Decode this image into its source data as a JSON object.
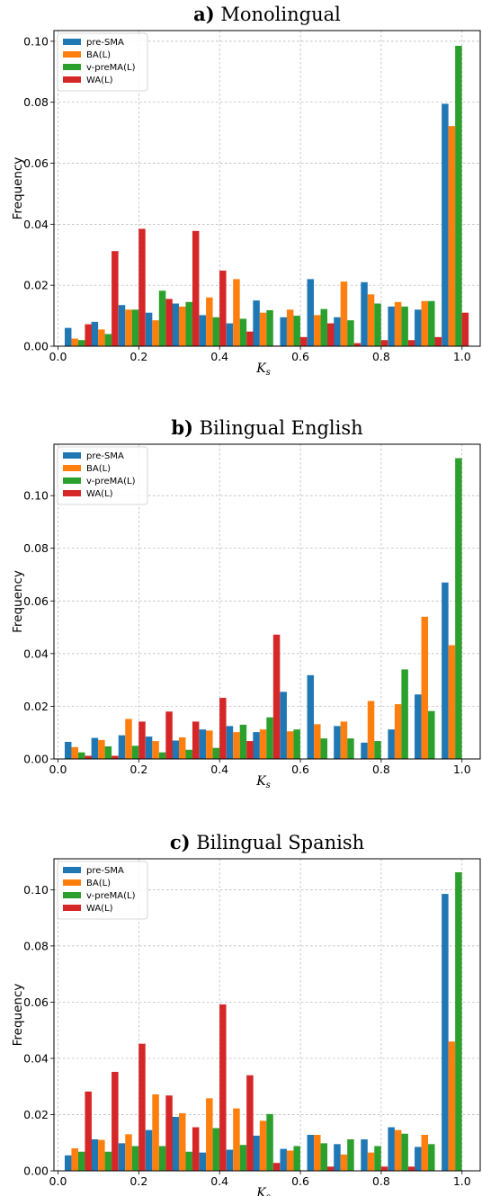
{
  "chart_data": [
    {
      "type": "bar",
      "panel_letter": "a)",
      "title": "Monolingual",
      "xlabel": "K",
      "xlabel_sub": "s",
      "ylabel": "Frequency",
      "xlim": [
        -0.01,
        1.045
      ],
      "ylim": [
        0,
        0.1035
      ],
      "xticks": [
        "0.0",
        "0.2",
        "0.4",
        "0.6",
        "0.8",
        "1.0"
      ],
      "xtick_values": [
        0.0,
        0.2,
        0.4,
        0.6,
        0.8,
        1.0
      ],
      "yticks": [
        "0.00",
        "0.02",
        "0.04",
        "0.06",
        "0.08",
        "0.10"
      ],
      "ytick_values": [
        0,
        0.02,
        0.04,
        0.06,
        0.08,
        0.1
      ],
      "grid": true,
      "legend_position": "top-left",
      "bin_centers": [
        0.05,
        0.116,
        0.183,
        0.25,
        0.316,
        0.383,
        0.45,
        0.516,
        0.583,
        0.65,
        0.716,
        0.783,
        0.85,
        0.916,
        0.983
      ],
      "series": [
        {
          "name": "pre-SMA",
          "color": "#1f77b4",
          "values": [
            0.006,
            0.008,
            0.0135,
            0.011,
            0.014,
            0.0102,
            0.0075,
            0.015,
            0.0095,
            0.022,
            0.0095,
            0.021,
            0.013,
            0.012,
            0.0795
          ]
        },
        {
          "name": "BA(L)",
          "color": "#ff7f0e",
          "values": [
            0.0025,
            0.0055,
            0.012,
            0.0085,
            0.013,
            0.016,
            0.022,
            0.011,
            0.012,
            0.0102,
            0.0212,
            0.017,
            0.0145,
            0.0148,
            0.0722
          ]
        },
        {
          "name": "v-preMA(L)",
          "color": "#2ca02c",
          "values": [
            0.002,
            0.004,
            0.012,
            0.0182,
            0.0145,
            0.0095,
            0.009,
            0.0118,
            0.01,
            0.0122,
            0.0085,
            0.014,
            0.013,
            0.0148,
            0.0985
          ]
        },
        {
          "name": "WA(L)",
          "color": "#d62728",
          "values": [
            0.0072,
            0.0312,
            0.0385,
            0.0155,
            0.0378,
            0.0248,
            0.0048,
            0.0002,
            0.003,
            0.0075,
            0.001,
            0.002,
            0.002,
            0.003,
            0.011
          ]
        }
      ]
    },
    {
      "type": "bar",
      "panel_letter": "b)",
      "title": "Bilingual English",
      "xlabel": "K",
      "xlabel_sub": "s",
      "ylabel": "Frequency",
      "xlim": [
        -0.01,
        1.045
      ],
      "ylim": [
        0,
        0.1195
      ],
      "xticks": [
        "0.0",
        "0.2",
        "0.4",
        "0.6",
        "0.8",
        "1.0"
      ],
      "xtick_values": [
        0.0,
        0.2,
        0.4,
        0.6,
        0.8,
        1.0
      ],
      "yticks": [
        "0.00",
        "0.02",
        "0.04",
        "0.06",
        "0.08",
        "0.10"
      ],
      "ytick_values": [
        0,
        0.02,
        0.04,
        0.06,
        0.08,
        0.1
      ],
      "grid": true,
      "legend_position": "top-left",
      "bin_centers": [
        0.05,
        0.116,
        0.183,
        0.25,
        0.316,
        0.383,
        0.45,
        0.516,
        0.583,
        0.65,
        0.716,
        0.783,
        0.85,
        0.916,
        0.983
      ],
      "series": [
        {
          "name": "pre-SMA",
          "color": "#1f77b4",
          "values": [
            0.0065,
            0.008,
            0.009,
            0.0085,
            0.007,
            0.0112,
            0.0125,
            0.0102,
            0.0255,
            0.0318,
            0.0125,
            0.0062,
            0.0112,
            0.0245,
            0.067
          ]
        },
        {
          "name": "BA(L)",
          "color": "#ff7f0e",
          "values": [
            0.0045,
            0.0072,
            0.0152,
            0.0068,
            0.0082,
            0.0108,
            0.0102,
            0.0112,
            0.0105,
            0.0132,
            0.0142,
            0.022,
            0.0208,
            0.054,
            0.0432
          ]
        },
        {
          "name": "v-preMA(L)",
          "color": "#2ca02c",
          "values": [
            0.0025,
            0.0048,
            0.005,
            0.0025,
            0.0035,
            0.0042,
            0.013,
            0.0158,
            0.0112,
            0.0078,
            0.0078,
            0.0068,
            0.034,
            0.0182,
            0.1142
          ]
        },
        {
          "name": "WA(L)",
          "color": "#d62728",
          "values": [
            0.0012,
            0.0012,
            0.0142,
            0.018,
            0.0142,
            0.0232,
            0.0068,
            0.0472,
            0.0,
            0.0,
            0.0,
            0.0,
            0.0,
            0.0,
            0.0
          ]
        }
      ]
    },
    {
      "type": "bar",
      "panel_letter": "c)",
      "title": "Bilingual Spanish",
      "xlabel": "K",
      "xlabel_sub": "s",
      "ylabel": "Frequency",
      "xlim": [
        -0.01,
        1.045
      ],
      "ylim": [
        0,
        0.111
      ],
      "xticks": [
        "0.0",
        "0.2",
        "0.4",
        "0.6",
        "0.8",
        "1.0"
      ],
      "xtick_values": [
        0.0,
        0.2,
        0.4,
        0.6,
        0.8,
        1.0
      ],
      "yticks": [
        "0.00",
        "0.02",
        "0.04",
        "0.06",
        "0.08",
        "0.10"
      ],
      "ytick_values": [
        0,
        0.02,
        0.04,
        0.06,
        0.08,
        0.1
      ],
      "grid": true,
      "legend_position": "top-left",
      "bin_centers": [
        0.05,
        0.116,
        0.183,
        0.25,
        0.316,
        0.383,
        0.45,
        0.516,
        0.583,
        0.65,
        0.716,
        0.783,
        0.85,
        0.916,
        0.983
      ],
      "series": [
        {
          "name": "pre-SMA",
          "color": "#1f77b4",
          "values": [
            0.0055,
            0.0112,
            0.0098,
            0.0145,
            0.0192,
            0.0065,
            0.0075,
            0.0125,
            0.0078,
            0.0128,
            0.0095,
            0.0112,
            0.0155,
            0.0085,
            0.0985
          ]
        },
        {
          "name": "BA(L)",
          "color": "#ff7f0e",
          "values": [
            0.008,
            0.011,
            0.013,
            0.0272,
            0.0205,
            0.0258,
            0.0222,
            0.0178,
            0.0072,
            0.0128,
            0.0058,
            0.0065,
            0.0145,
            0.0128,
            0.046
          ]
        },
        {
          "name": "v-preMA(L)",
          "color": "#2ca02c",
          "values": [
            0.0068,
            0.0068,
            0.0088,
            0.0088,
            0.0068,
            0.0152,
            0.0092,
            0.0202,
            0.0088,
            0.0098,
            0.0112,
            0.0088,
            0.0132,
            0.0095,
            0.1062
          ]
        },
        {
          "name": "WA(L)",
          "color": "#d62728",
          "values": [
            0.0282,
            0.0352,
            0.0452,
            0.0268,
            0.0155,
            0.0592,
            0.034,
            0.0028,
            0.0,
            0.0015,
            0.0,
            0.0015,
            0.0015,
            0.0,
            0.0
          ]
        }
      ]
    }
  ]
}
